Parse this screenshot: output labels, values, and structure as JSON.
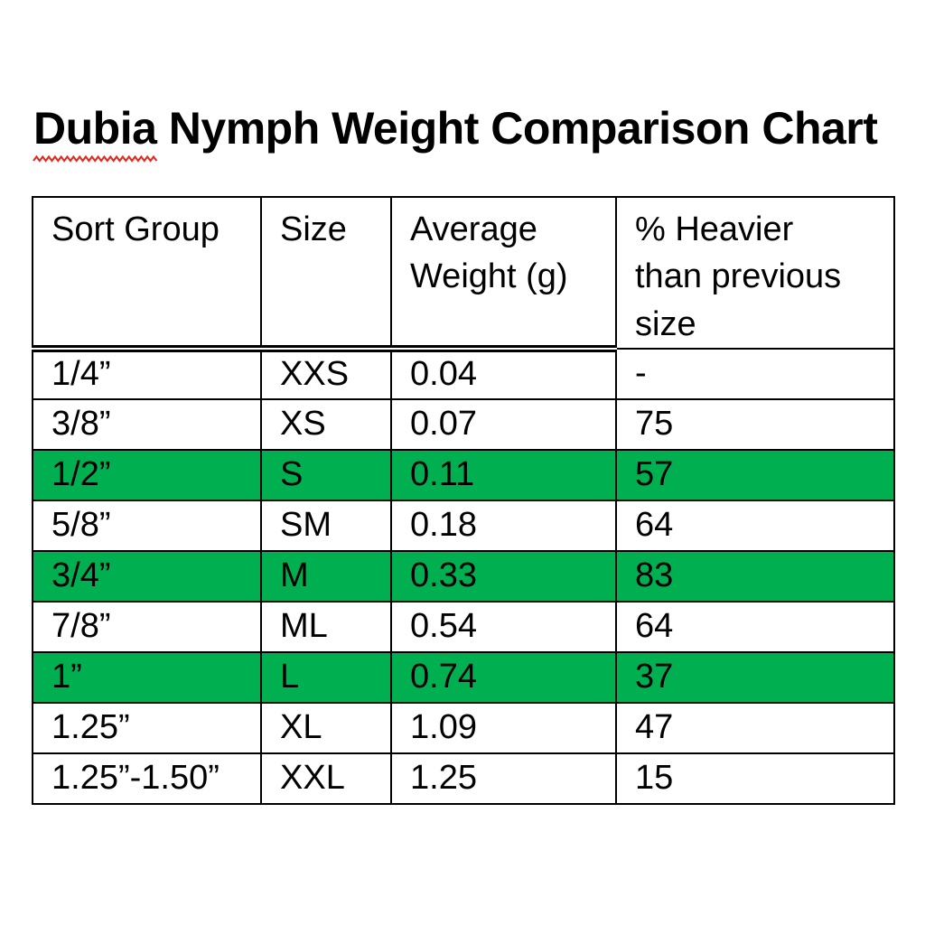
{
  "title": {
    "text": "Dubia Nymph Weight Comparison Chart",
    "misspelled_word": "Dubia",
    "rest": " Nymph Weight Comparison Chart",
    "spellcheck_color": "#e02b20"
  },
  "table": {
    "highlight_color": "#00B050",
    "columns": [
      {
        "label": "Sort Group",
        "lines": [
          "Sort Group"
        ]
      },
      {
        "label": "Size",
        "lines": [
          "Size"
        ]
      },
      {
        "label": "Average Weight (g)",
        "lines": [
          "Average",
          "Weight (g)"
        ]
      },
      {
        "label": "% Heavier than previous size",
        "lines": [
          "% Heavier",
          "than previous",
          "size"
        ]
      }
    ],
    "rows": [
      {
        "cells": [
          "1/4”",
          "XXS",
          "0.04",
          "-"
        ],
        "highlighted": false
      },
      {
        "cells": [
          "3/8”",
          "XS",
          "0.07",
          "75"
        ],
        "highlighted": false
      },
      {
        "cells": [
          "1/2”",
          "S",
          "0.11",
          "57"
        ],
        "highlighted": true
      },
      {
        "cells": [
          "5/8”",
          "SM",
          "0.18",
          "64"
        ],
        "highlighted": false
      },
      {
        "cells": [
          "3/4”",
          "M",
          "0.33",
          "83"
        ],
        "highlighted": true
      },
      {
        "cells": [
          "7/8”",
          "ML",
          "0.54",
          "64"
        ],
        "highlighted": false
      },
      {
        "cells": [
          "1”",
          "L",
          "0.74",
          "37"
        ],
        "highlighted": true
      },
      {
        "cells": [
          "1.25”",
          "XL",
          "1.09",
          "47"
        ],
        "highlighted": false
      },
      {
        "cells": [
          "1.25”-1.50”",
          "XXL",
          "1.25",
          "15"
        ],
        "highlighted": false
      }
    ]
  },
  "chart_data": {
    "type": "table",
    "title": "Dubia Nymph Weight Comparison Chart",
    "columns": [
      "Sort Group",
      "Size",
      "Average Weight (g)",
      "% Heavier than previous size"
    ],
    "rows": [
      [
        "1/4”",
        "XXS",
        0.04,
        "-"
      ],
      [
        "3/8”",
        "XS",
        0.07,
        75
      ],
      [
        "1/2”",
        "S",
        0.11,
        57
      ],
      [
        "5/8”",
        "SM",
        0.18,
        64
      ],
      [
        "3/4”",
        "M",
        0.33,
        83
      ],
      [
        "7/8”",
        "ML",
        0.54,
        64
      ],
      [
        "1”",
        "L",
        0.74,
        37
      ],
      [
        "1.25”",
        "XL",
        1.09,
        47
      ],
      [
        "1.25”-1.50”",
        "XXL",
        1.25,
        15
      ]
    ],
    "highlighted_row_indices": [
      2,
      4,
      6
    ]
  }
}
